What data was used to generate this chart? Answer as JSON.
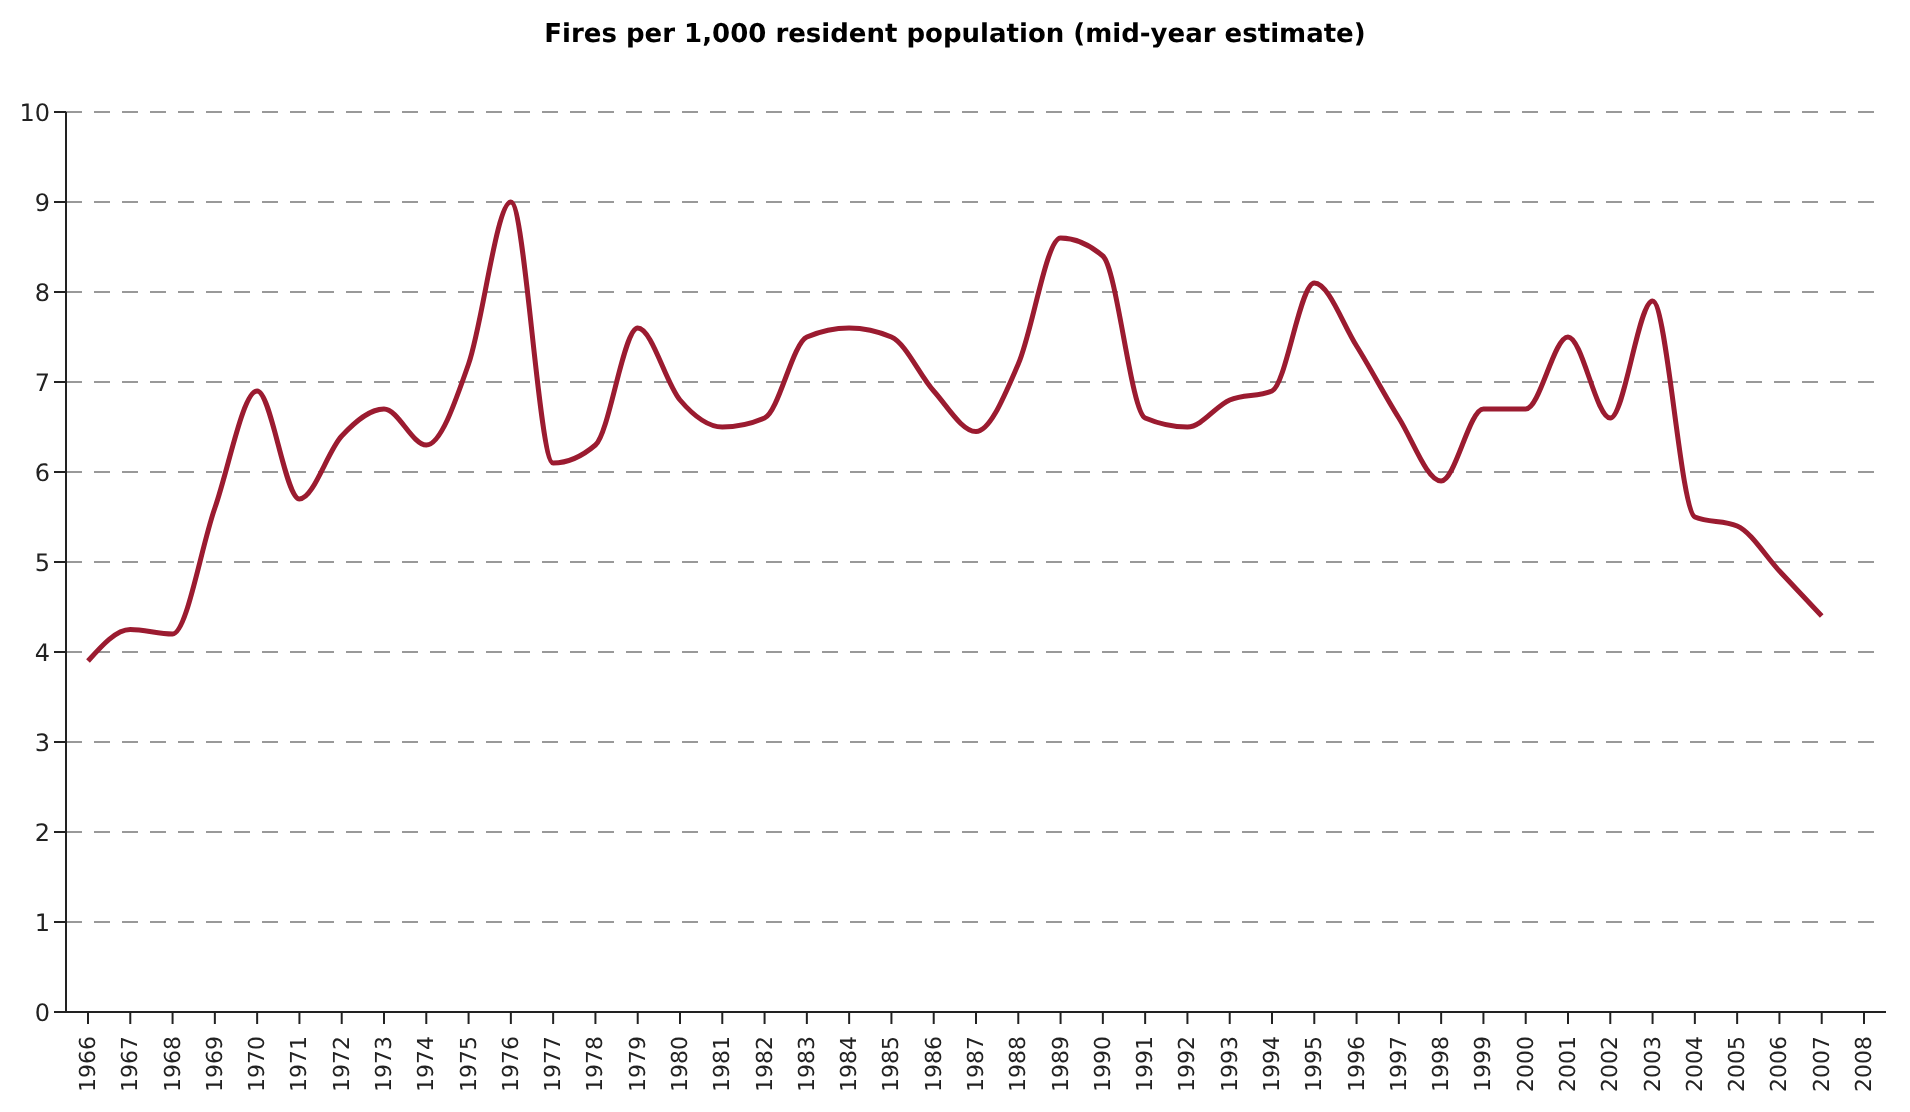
{
  "chart_data": {
    "type": "line",
    "title": "Fires per 1,000 resident population (mid-year estimate)",
    "categories": [
      "1966",
      "1967",
      "1968",
      "1969",
      "1970",
      "1971",
      "1972",
      "1973",
      "1974",
      "1975",
      "1976",
      "1977",
      "1978",
      "1979",
      "1980",
      "1981",
      "1982",
      "1983",
      "1984",
      "1985",
      "1986",
      "1987",
      "1988",
      "1989",
      "1990",
      "1991",
      "1992",
      "1993",
      "1994",
      "1995",
      "1996",
      "1997",
      "1998",
      "1999",
      "2000",
      "2001",
      "2002",
      "2003",
      "2004",
      "2005",
      "2006",
      "2007",
      "2008"
    ],
    "series": [
      {
        "color": "#9b1b30",
        "values": [
          3.9,
          4.25,
          4.2,
          5.6,
          6.9,
          5.7,
          6.4,
          6.7,
          6.3,
          7.2,
          9.0,
          6.1,
          6.3,
          7.6,
          6.8,
          6.5,
          6.6,
          7.5,
          7.6,
          7.5,
          6.9,
          6.45,
          7.2,
          8.6,
          8.4,
          6.6,
          6.5,
          6.8,
          6.9,
          8.1,
          7.4,
          6.6,
          5.9,
          6.7,
          6.7,
          7.5,
          6.6,
          7.9,
          5.5,
          5.4,
          4.9,
          4.4,
          null
        ]
      }
    ],
    "ylim": [
      0,
      10
    ],
    "yticks": [
      0,
      1,
      2,
      3,
      4,
      5,
      6,
      7,
      8,
      9,
      10
    ],
    "grid": "y",
    "marker": "none",
    "line_style": "solid"
  }
}
